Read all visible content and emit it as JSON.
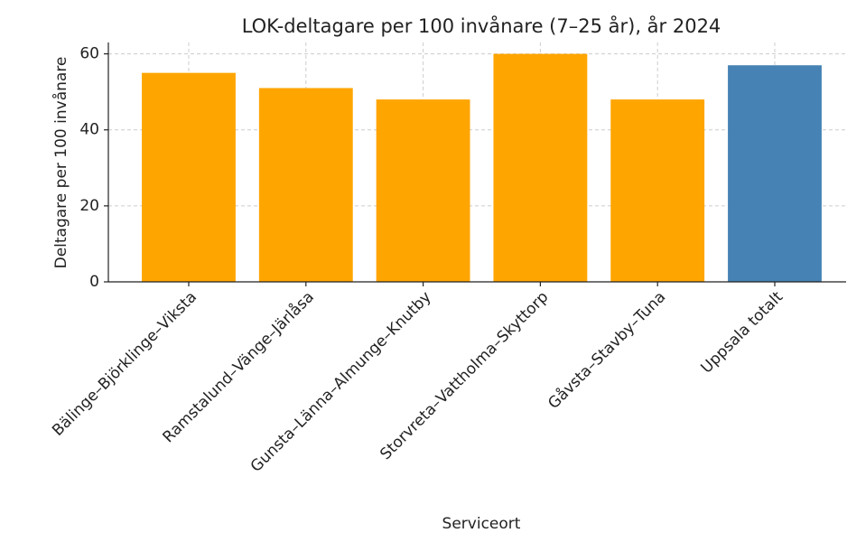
{
  "chart_data": {
    "type": "bar",
    "title": "LOK-deltagare per 100 invånare (7–25 år), år 2024",
    "x_label": "Serviceort",
    "y_label": "Deltagare per 100 invånare",
    "categories": [
      "Bälinge–Björklinge–Viksta",
      "Ramstalund–Vänge–Järlåsa",
      "Gunsta–Länna–Almunge–Knutby",
      "Storvreta–Vattholma–Skyttorp",
      "Gåvsta–Stavby–Tuna",
      "Uppsala totalt"
    ],
    "values": [
      55,
      51,
      48,
      60,
      48,
      57
    ],
    "colors": [
      "#ffa500",
      "#ffa500",
      "#ffa500",
      "#ffa500",
      "#ffa500",
      "#4682b4"
    ],
    "ylim": [
      0,
      63
    ],
    "yticks": [
      0,
      20,
      40,
      60
    ],
    "grid": true
  }
}
